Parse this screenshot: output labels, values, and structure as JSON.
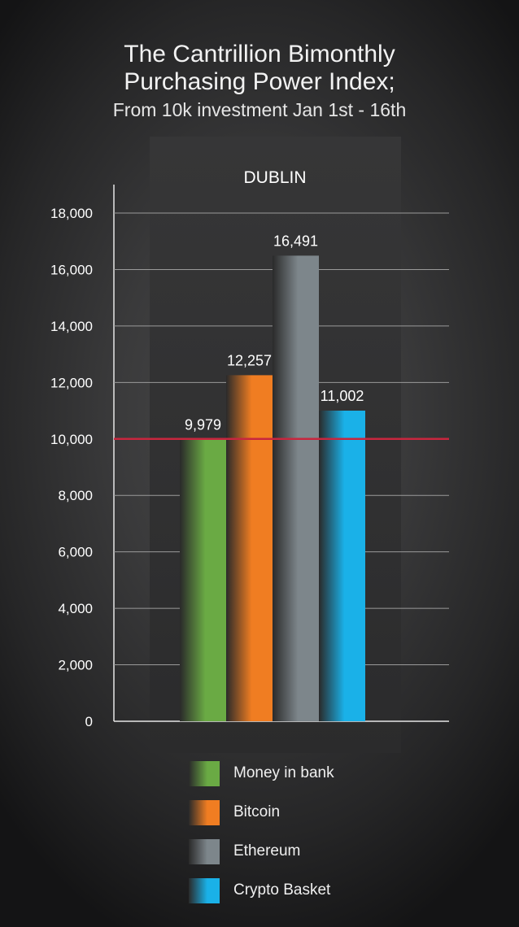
{
  "header": {
    "title_lines": [
      "The Cantrillion Bimonthly",
      "Purchasing Power Index;"
    ],
    "subtitle": "From 10k investment Jan 1st - 16th"
  },
  "chart_data": {
    "type": "bar",
    "title": "The Cantrillion Bimonthly Purchasing Power Index;",
    "subtitle": "From 10k investment Jan 1st - 16th",
    "panel_label": "DUBLIN",
    "categories": [
      "Money in bank",
      "Bitcoin",
      "Ethereum",
      "Crypto Basket"
    ],
    "values": [
      9979,
      12257,
      16491,
      11002
    ],
    "value_labels": [
      "9,979",
      "12,257",
      "16,491",
      "11,002"
    ],
    "colors": [
      "#6aaa44",
      "#f07d22",
      "#7d868b",
      "#1ab1e8"
    ],
    "ylim": [
      0,
      18000
    ],
    "yticks": [
      0,
      2000,
      4000,
      6000,
      8000,
      10000,
      12000,
      14000,
      16000,
      18000
    ],
    "ytick_labels": [
      "0",
      "2,000",
      "4,000",
      "6,000",
      "8,000",
      "10,000",
      "12,000",
      "14,000",
      "16,000",
      "18,000"
    ],
    "reference_line": {
      "value": 10000,
      "color": "#c8263e"
    },
    "grid": true,
    "legend": {
      "position": "bottom"
    },
    "xlabel": "",
    "ylabel": ""
  }
}
